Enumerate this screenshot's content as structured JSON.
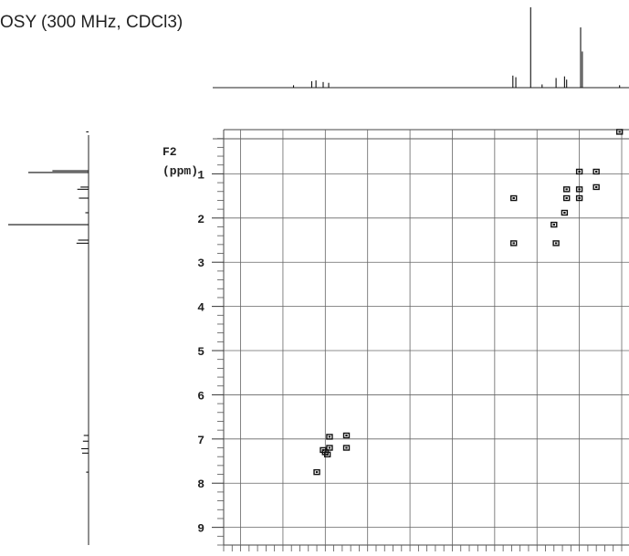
{
  "title": "OSY (300 MHz, CDCl3)",
  "chart_data": {
    "type": "scatter",
    "title": "OSY (300 MHz, CDCl3)",
    "f2_axis": {
      "label_line1": "F2",
      "label_line2": "(ppm)",
      "range": [
        0.0,
        9.4
      ],
      "ticks": [
        1,
        2,
        3,
        4,
        5,
        6,
        7,
        8,
        9
      ]
    },
    "f1_axis": {
      "range": [
        9.4,
        0.0
      ],
      "grid": true
    },
    "cross_peaks": [
      {
        "x": 2.55,
        "y": 1.55
      },
      {
        "x": 2.55,
        "y": 2.57
      },
      {
        "x": 1.6,
        "y": 2.15
      },
      {
        "x": 1.35,
        "y": 1.88
      },
      {
        "x": 1.0,
        "y": 0.95
      },
      {
        "x": 0.6,
        "y": 0.95
      },
      {
        "x": 1.0,
        "y": 1.35
      },
      {
        "x": 0.6,
        "y": 1.3
      },
      {
        "x": 1.0,
        "y": 1.55
      },
      {
        "x": 1.3,
        "y": 1.55
      },
      {
        "x": 1.3,
        "y": 1.35
      },
      {
        "x": 1.55,
        "y": 2.57
      },
      {
        "x": 0.05,
        "y": 0.05
      },
      {
        "x": 7.2,
        "y": 7.75
      },
      {
        "x": 7.0,
        "y": 7.3
      },
      {
        "x": 6.9,
        "y": 7.2
      },
      {
        "x": 6.9,
        "y": 6.95
      },
      {
        "x": 6.5,
        "y": 6.92
      },
      {
        "x": 6.5,
        "y": 7.2
      },
      {
        "x": 7.05,
        "y": 7.25
      },
      {
        "x": 6.95,
        "y": 7.35
      }
    ],
    "projection_peaks": [
      {
        "ppm": 7.75,
        "h": 0.03
      },
      {
        "ppm": 7.32,
        "h": 0.08
      },
      {
        "ppm": 7.22,
        "h": 0.09
      },
      {
        "ppm": 7.05,
        "h": 0.07
      },
      {
        "ppm": 6.92,
        "h": 0.06
      },
      {
        "ppm": 2.57,
        "h": 0.15
      },
      {
        "ppm": 2.5,
        "h": 0.13
      },
      {
        "ppm": 2.15,
        "h": 1.0
      },
      {
        "ppm": 1.88,
        "h": 0.04
      },
      {
        "ppm": 1.55,
        "h": 0.12
      },
      {
        "ppm": 1.35,
        "h": 0.14
      },
      {
        "ppm": 1.3,
        "h": 0.1
      },
      {
        "ppm": 0.97,
        "h": 0.75
      },
      {
        "ppm": 0.93,
        "h": 0.45
      },
      {
        "ppm": 0.05,
        "h": 0.03
      }
    ],
    "grid": true
  }
}
